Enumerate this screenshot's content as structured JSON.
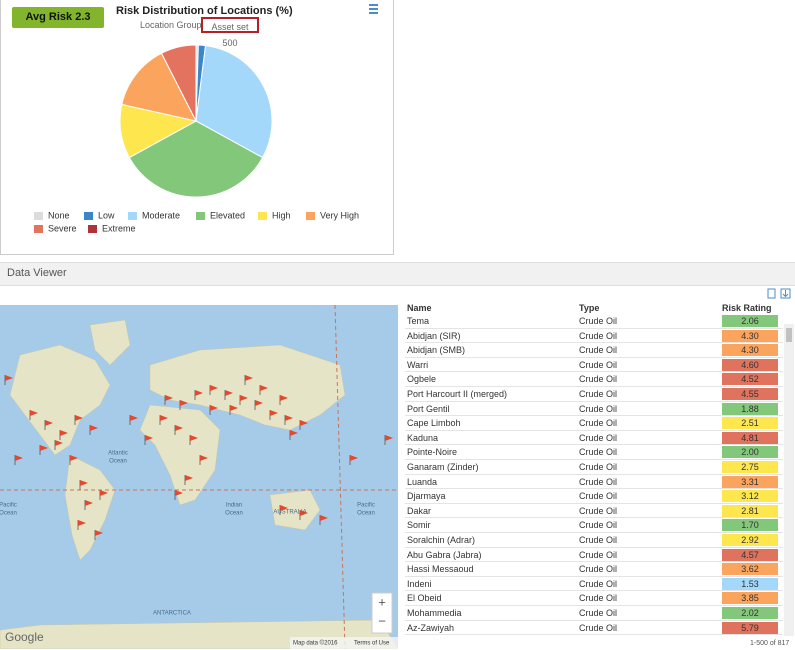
{
  "badge": "Avg Risk 2.3",
  "chart_data": {
    "type": "pie",
    "title": "Risk Distribution of Locations (%)",
    "subtitle": "Location Group",
    "subtitle_box": "Asset set 500",
    "categories": [
      "None",
      "Low",
      "Moderate",
      "Elevated",
      "High",
      "Very High",
      "Severe",
      "Extreme"
    ],
    "values": [
      0.5,
      1.5,
      31,
      34,
      11.5,
      14,
      7.5,
      0
    ],
    "colors": [
      "#dcdcdc",
      "#3a86c8",
      "#a3d8fb",
      "#82c77a",
      "#fde64e",
      "#fba45e",
      "#e3735e",
      "#b0333a"
    ]
  },
  "panel_title": "Data Viewer",
  "table": {
    "columns": [
      "Name",
      "Type",
      "Risk Rating"
    ],
    "rows": [
      [
        "Tema",
        "Crude Oil",
        "2.06"
      ],
      [
        "Abidjan (SIR)",
        "Crude Oil",
        "4.30"
      ],
      [
        "Abidjan (SMB)",
        "Crude Oil",
        "4.30"
      ],
      [
        "Warri",
        "Crude Oil",
        "4.60"
      ],
      [
        "Ogbele",
        "Crude Oil",
        "4.52"
      ],
      [
        "Port Harcourt II (merged)",
        "Crude Oil",
        "4.55"
      ],
      [
        "Port Gentil",
        "Crude Oil",
        "1.88"
      ],
      [
        "Cape Limboh",
        "Crude Oil",
        "2.51"
      ],
      [
        "Kaduna",
        "Crude Oil",
        "4.81"
      ],
      [
        "Pointe-Noire",
        "Crude Oil",
        "2.00"
      ],
      [
        "Ganaram (Zinder)",
        "Crude Oil",
        "2.75"
      ],
      [
        "Luanda",
        "Crude Oil",
        "3.31"
      ],
      [
        "Djarmaya",
        "Crude Oil",
        "3.12"
      ],
      [
        "Dakar",
        "Crude Oil",
        "2.81"
      ],
      [
        "Somir",
        "Crude Oil",
        "1.70"
      ],
      [
        "Soralchin (Adrar)",
        "Crude Oil",
        "2.92"
      ],
      [
        "Abu Gabra (Jabra)",
        "Crude Oil",
        "4.57"
      ],
      [
        "Hassi Messaoud",
        "Crude Oil",
        "3.62"
      ],
      [
        "Indeni",
        "Crude Oil",
        "1.53"
      ],
      [
        "El Obeid",
        "Crude Oil",
        "3.85"
      ],
      [
        "Mohammedia",
        "Crude Oil",
        "2.02"
      ],
      [
        "Az-Zawiyah",
        "Crude Oil",
        "5.79"
      ]
    ],
    "row_colors": [
      "#82c77a",
      "#fba45e",
      "#fba45e",
      "#e0735e",
      "#e0735e",
      "#e0735e",
      "#82c77a",
      "#fde64e",
      "#e0735e",
      "#82c77a",
      "#fde64e",
      "#fba45e",
      "#fde64e",
      "#fde64e",
      "#82c77a",
      "#fde64e",
      "#e0735e",
      "#fba45e",
      "#a3d8fb",
      "#fba45e",
      "#82c77a",
      "#e0735e"
    ]
  },
  "pager": "1-500 of 817",
  "map": {
    "labels": [
      [
        "Atlantic",
        "Ocean"
      ],
      [
        "Indian",
        "Ocean"
      ],
      [
        "Pacific",
        "Ocean"
      ],
      [
        "Pacific",
        "Ocean"
      ],
      [
        "ANTARCTICA"
      ],
      [
        "AUSTRALIA"
      ]
    ],
    "attribution": "Map data ©2016",
    "terms": "Terms of Use",
    "logo": "Google",
    "zoom_in": "+",
    "zoom_out": "−"
  }
}
